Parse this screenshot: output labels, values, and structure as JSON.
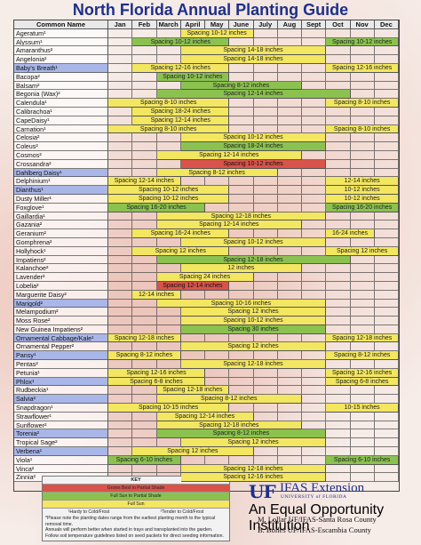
{
  "title": "North Florida Annual Planting Guide",
  "header": {
    "name_col": "Common Name",
    "months": [
      "Jan",
      "Feb",
      "March",
      "April",
      "May",
      "June",
      "July",
      "Aug",
      "Sept",
      "Oct",
      "Nov",
      "Dec"
    ]
  },
  "rows": [
    {
      "name": "Ageratum¹",
      "shade": "white",
      "bars": [
        {
          "start": 4,
          "end": 6,
          "color": "y",
          "label": "Spacing 10-12 inches"
        }
      ]
    },
    {
      "name": "Alyssum¹",
      "shade": "white",
      "bars": [
        {
          "start": 2,
          "end": 5,
          "color": "g",
          "label": "Spacing 10-12 inches"
        },
        {
          "start": 10,
          "end": 12,
          "color": "g",
          "label": "Spacing 10-12 inches"
        }
      ]
    },
    {
      "name": "Amaranthus²",
      "shade": "white",
      "bars": [
        {
          "start": 4,
          "end": 9,
          "color": "y",
          "label": "Spacing 14-18 inches"
        }
      ]
    },
    {
      "name": "Angelonia²",
      "shade": "white",
      "bars": [
        {
          "start": 4,
          "end": 9,
          "color": "y",
          "label": "Spacing 14-18 inches"
        }
      ]
    },
    {
      "name": "Baby's Breath¹",
      "shade": "blue",
      "bars": [
        {
          "start": 2,
          "end": 5,
          "color": "y",
          "label": "Spacing 12-16 inches"
        },
        {
          "start": 10,
          "end": 12,
          "color": "y",
          "label": "Spacing 12-16 inches"
        }
      ]
    },
    {
      "name": "Bacopa²",
      "shade": "white",
      "bars": [
        {
          "start": 3,
          "end": 5,
          "color": "g",
          "label": "Spacing 10-12 inches"
        }
      ]
    },
    {
      "name": "Balsam²",
      "shade": "white",
      "bars": [
        {
          "start": 4,
          "end": 8,
          "color": "g",
          "label": "Spacing 8-12 inches"
        }
      ]
    },
    {
      "name": "Begonia (Wax)²",
      "shade": "white",
      "bars": [
        {
          "start": 3,
          "end": 10,
          "color": "g",
          "label": "Spacing 12-14 inches"
        }
      ]
    },
    {
      "name": "Calendula¹",
      "shade": "white",
      "bars": [
        {
          "start": 1,
          "end": 5,
          "color": "y",
          "label": "Spacing 8-10 inches"
        },
        {
          "start": 10,
          "end": 12,
          "color": "y",
          "label": "Spacing 8-10 inches"
        }
      ]
    },
    {
      "name": "Calibrachoa¹",
      "shade": "white",
      "bars": [
        {
          "start": 2,
          "end": 5,
          "color": "y",
          "label": "Spacing 18-24 inches"
        }
      ]
    },
    {
      "name": "CapeDaisy¹",
      "shade": "white",
      "bars": [
        {
          "start": 2,
          "end": 5,
          "color": "y",
          "label": "Spacing 12-14 inches"
        }
      ]
    },
    {
      "name": "Carnation¹",
      "shade": "white",
      "bars": [
        {
          "start": 1,
          "end": 5,
          "color": "y",
          "label": "Spacing 8-10 inches"
        },
        {
          "start": 10,
          "end": 12,
          "color": "y",
          "label": "Spacing 8-10 inches"
        }
      ]
    },
    {
      "name": "Celosia²",
      "shade": "white",
      "bars": [
        {
          "start": 4,
          "end": 9,
          "color": "y",
          "label": "Spacing 10-12 inches"
        }
      ]
    },
    {
      "name": "Coleus²",
      "shade": "white",
      "bars": [
        {
          "start": 4,
          "end": 9,
          "color": "g",
          "label": "Spacing 18-24 inches"
        }
      ]
    },
    {
      "name": "Cosmos²",
      "shade": "white",
      "bars": [
        {
          "start": 3,
          "end": 8,
          "color": "y",
          "label": "Spacing 12-14 inches"
        }
      ]
    },
    {
      "name": "Crossandra²",
      "shade": "white",
      "bars": [
        {
          "start": 4,
          "end": 9,
          "color": "r",
          "label": "Spacing 10-12 inches"
        }
      ]
    },
    {
      "name": "Dahlberg Daisy¹",
      "shade": "blue",
      "bars": [
        {
          "start": 3,
          "end": 7,
          "color": "y",
          "label": "Spacing 8-12 inches"
        }
      ]
    },
    {
      "name": "Delphinium¹",
      "shade": "white",
      "bars": [
        {
          "start": 1,
          "end": 3,
          "color": "y",
          "label": "Spacing 12-14 inches"
        },
        {
          "start": 10,
          "end": 12,
          "color": "y",
          "label": "12-14 inches"
        }
      ]
    },
    {
      "name": "Dianthus¹",
      "shade": "blue",
      "bars": [
        {
          "start": 1,
          "end": 5,
          "color": "y",
          "label": "Spacing 10-12 inches"
        },
        {
          "start": 10,
          "end": 12,
          "color": "y",
          "label": "10-12 inches"
        }
      ]
    },
    {
      "name": "Dusty Miller¹",
      "shade": "white",
      "bars": [
        {
          "start": 1,
          "end": 5,
          "color": "y",
          "label": "Spacing 10-12 inches"
        },
        {
          "start": 10,
          "end": 12,
          "color": "y",
          "label": "10-12 inches"
        }
      ]
    },
    {
      "name": "Foxglove¹",
      "shade": "white",
      "bars": [
        {
          "start": 1,
          "end": 4,
          "color": "g",
          "label": "Spacing 16-20 inches"
        },
        {
          "start": 10,
          "end": 12,
          "color": "g",
          "label": "Spacing 16-20 inches"
        }
      ]
    },
    {
      "name": "Gaillardia¹",
      "shade": "white",
      "bars": [
        {
          "start": 3,
          "end": 9,
          "color": "y",
          "label": "Spacing 12-18 inches"
        }
      ]
    },
    {
      "name": "Gazania²",
      "shade": "white",
      "bars": [
        {
          "start": 3,
          "end": 8,
          "color": "y",
          "label": "Spacing 12-14 inches"
        }
      ]
    },
    {
      "name": "Geranium²",
      "shade": "white",
      "bars": [
        {
          "start": 2,
          "end": 5,
          "color": "y",
          "label": "Spacing 16-24 inches"
        },
        {
          "start": 10,
          "end": 11,
          "color": "y",
          "label": "16-24 inches"
        }
      ]
    },
    {
      "name": "Gomphrena²",
      "shade": "white",
      "bars": [
        {
          "start": 4,
          "end": 9,
          "color": "y",
          "label": "Spacing 10-12 inches"
        }
      ]
    },
    {
      "name": "Hollyhock¹",
      "shade": "white",
      "bars": [
        {
          "start": 2,
          "end": 5,
          "color": "y",
          "label": "Spacing 12 inches"
        },
        {
          "start": 10,
          "end": 12,
          "color": "y",
          "label": "Spacing 12 inches"
        }
      ]
    },
    {
      "name": "Impatiens²",
      "shade": "white",
      "bars": [
        {
          "start": 3,
          "end": 10,
          "color": "g",
          "label": "Spacing 12-18 inches"
        }
      ]
    },
    {
      "name": "Kalanchoe²",
      "shade": "white",
      "bars": [
        {
          "start": 4,
          "end": 8,
          "color": "y",
          "label": "12 inches"
        }
      ]
    },
    {
      "name": "Lavender²",
      "shade": "white",
      "bars": [
        {
          "start": 3,
          "end": 6,
          "color": "y",
          "label": "Spacing 24 inches"
        }
      ]
    },
    {
      "name": "Lobelia²",
      "shade": "white",
      "bars": [
        {
          "start": 3,
          "end": 5,
          "color": "r",
          "label": "Spacing 12-14 inches"
        }
      ]
    },
    {
      "name": "Marguerite Daisy²",
      "shade": "white",
      "bars": [
        {
          "start": 2,
          "end": 3,
          "color": "y",
          "label": "12-14 inches"
        }
      ]
    },
    {
      "name": "Marigold²",
      "shade": "blue",
      "bars": [
        {
          "start": 3,
          "end": 9,
          "color": "y",
          "label": "Spacing 10-16 inches"
        }
      ]
    },
    {
      "name": "Melampodium²",
      "shade": "white",
      "bars": [
        {
          "start": 4,
          "end": 9,
          "color": "y",
          "label": "Spacing 12 inches"
        }
      ]
    },
    {
      "name": "Moss Rose²",
      "shade": "white",
      "bars": [
        {
          "start": 4,
          "end": 9,
          "color": "y",
          "label": "Spacing 10-12 inches"
        }
      ]
    },
    {
      "name": "New Guinea Impatiens²",
      "shade": "white",
      "bars": [
        {
          "start": 4,
          "end": 9,
          "color": "g",
          "label": "Spacing 30 inches"
        }
      ]
    },
    {
      "name": "Ornamental Cabbage/Kale¹",
      "shade": "blue",
      "bars": [
        {
          "start": 1,
          "end": 3,
          "color": "y",
          "label": "Spacing 12-18 inches"
        },
        {
          "start": 10,
          "end": 12,
          "color": "y",
          "label": "Spacing 12-18 inches"
        }
      ]
    },
    {
      "name": "Ornamental Pepper²",
      "shade": "white",
      "bars": [
        {
          "start": 4,
          "end": 9,
          "color": "y",
          "label": "Spacing 12 inches"
        }
      ]
    },
    {
      "name": "Pansy¹",
      "shade": "blue",
      "bars": [
        {
          "start": 1,
          "end": 3,
          "color": "y",
          "label": "Spacing 8-12 inches"
        },
        {
          "start": 10,
          "end": 12,
          "color": "y",
          "label": "Spacing 8-12 inches"
        }
      ]
    },
    {
      "name": "Pentas²",
      "shade": "white",
      "bars": [
        {
          "start": 4,
          "end": 9,
          "color": "y",
          "label": "Spacing 12-18 inches"
        }
      ]
    },
    {
      "name": "Petunia¹",
      "shade": "white",
      "bars": [
        {
          "start": 1,
          "end": 4,
          "color": "y",
          "label": "Spacing 12-16 inches"
        },
        {
          "start": 10,
          "end": 12,
          "color": "y",
          "label": "Spacing 12-16 inches"
        }
      ]
    },
    {
      "name": "Phlox¹",
      "shade": "blue",
      "bars": [
        {
          "start": 1,
          "end": 4,
          "color": "y",
          "label": "Spacing 6-8 inches"
        },
        {
          "start": 10,
          "end": 12,
          "color": "y",
          "label": "Spacing 6-8 inches"
        }
      ]
    },
    {
      "name": "Rudbeckia¹",
      "shade": "white",
      "bars": [
        {
          "start": 3,
          "end": 5,
          "color": "y",
          "label": "Spacing 12-18 inches"
        }
      ]
    },
    {
      "name": "Salvia²",
      "shade": "blue",
      "bars": [
        {
          "start": 3,
          "end": 8,
          "color": "y",
          "label": "Spacing 8-12 inches"
        }
      ]
    },
    {
      "name": "Snapdragon¹",
      "shade": "white",
      "bars": [
        {
          "start": 1,
          "end": 5,
          "color": "y",
          "label": "Spacing 10-15 inches"
        },
        {
          "start": 10,
          "end": 12,
          "color": "y",
          "label": "10-15 inches"
        }
      ]
    },
    {
      "name": "Strawflower¹",
      "shade": "white",
      "bars": [
        {
          "start": 3,
          "end": 6,
          "color": "y",
          "label": "Spacing 12-14 inches"
        }
      ]
    },
    {
      "name": "Sunflower²",
      "shade": "white",
      "bars": [
        {
          "start": 3,
          "end": 8,
          "color": "y",
          "label": "Spacing 12-18 inches"
        }
      ]
    },
    {
      "name": "Torenia²",
      "shade": "blue",
      "bars": [
        {
          "start": 3,
          "end": 9,
          "color": "g",
          "label": "Spacing 8-12 inches"
        }
      ]
    },
    {
      "name": "Tropical Sage²",
      "shade": "white",
      "bars": [
        {
          "start": 4,
          "end": 9,
          "color": "y",
          "label": "Spacing 12 inches"
        }
      ]
    },
    {
      "name": "Verbena¹",
      "shade": "blue",
      "bars": [
        {
          "start": 2,
          "end": 6,
          "color": "y",
          "label": "Spacing 12 inches"
        }
      ]
    },
    {
      "name": "Viola¹",
      "shade": "white",
      "bars": [
        {
          "start": 1,
          "end": 3,
          "color": "g",
          "label": "Spacing 6-10 inches"
        },
        {
          "start": 10,
          "end": 12,
          "color": "g",
          "label": "Spacing 6-10 inches"
        }
      ]
    },
    {
      "name": "Vinca²",
      "shade": "white",
      "bars": [
        {
          "start": 4,
          "end": 9,
          "color": "y",
          "label": "Spacing 12-18 inches"
        }
      ]
    },
    {
      "name": "Zinnia²",
      "shade": "white",
      "bars": [
        {
          "start": 4,
          "end": 9,
          "color": "y",
          "label": "Spacing 12-16 inches"
        }
      ]
    }
  ],
  "colors": {
    "green": "#8bc24f",
    "yellow": "#f3e660",
    "red": "#d9534a",
    "blue_name": "#a9b6e8",
    "title": "#1d2f8e"
  },
  "key": {
    "title": "KEY",
    "red": "Grows Best in Partial Shade",
    "green": "Full Sun to Partial Shade",
    "yellow": "Full Sun",
    "note1": "¹Hardy to Cold/Frost",
    "note2": "²Tender to Cold/Frost",
    "p1": "*Please note the planting dates range from the earliest planting month to the typical removal time.",
    "p2": "Annuals will perform better when started in trays and transplanted into the garden.",
    "p3": "Follow soil temperature guidelines listed on seed packets for direct seeding information."
  },
  "logo": {
    "uf": "UF",
    "ifas": "IFAS Extension",
    "university": "UNIVERSITY of FLORIDA",
    "eeo": "An Equal Opportunity Institution"
  },
  "credits": [
    "M. Lollar UF/IFAS-Santa Rosa County",
    "B. Bolles UF/IFAS-Escambia County"
  ]
}
